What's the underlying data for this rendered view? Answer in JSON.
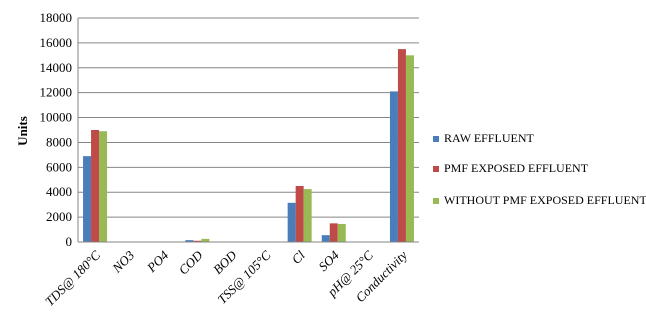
{
  "chart_data": {
    "type": "bar",
    "title": "",
    "xlabel": "",
    "ylabel": "Units",
    "ylim": [
      0,
      18000
    ],
    "yticks": [
      0,
      2000,
      4000,
      6000,
      8000,
      10000,
      12000,
      14000,
      16000,
      18000
    ],
    "grid": true,
    "legend_position": "right",
    "categories": [
      "TDS@ 180°C",
      "NO3",
      "PO4",
      "COD",
      "BOD",
      "TSS@ 105°C",
      "Cl",
      "SO4",
      "pH@ 25°C",
      "Conductivity"
    ],
    "series": [
      {
        "name": "RAW EFFLUENT",
        "color": "#4a7ebb",
        "values": [
          6900,
          0,
          0,
          150,
          0,
          0,
          3150,
          550,
          0,
          12100
        ]
      },
      {
        "name": "PMF EXPOSED EFFLUENT",
        "color": "#be4b48",
        "values": [
          9000,
          0,
          0,
          100,
          0,
          0,
          4500,
          1500,
          0,
          15500
        ]
      },
      {
        "name": "WITHOUT PMF EXPOSED EFFLUENT",
        "color": "#98b954",
        "values": [
          8900,
          0,
          0,
          250,
          0,
          0,
          4250,
          1450,
          0,
          15000
        ]
      }
    ]
  }
}
